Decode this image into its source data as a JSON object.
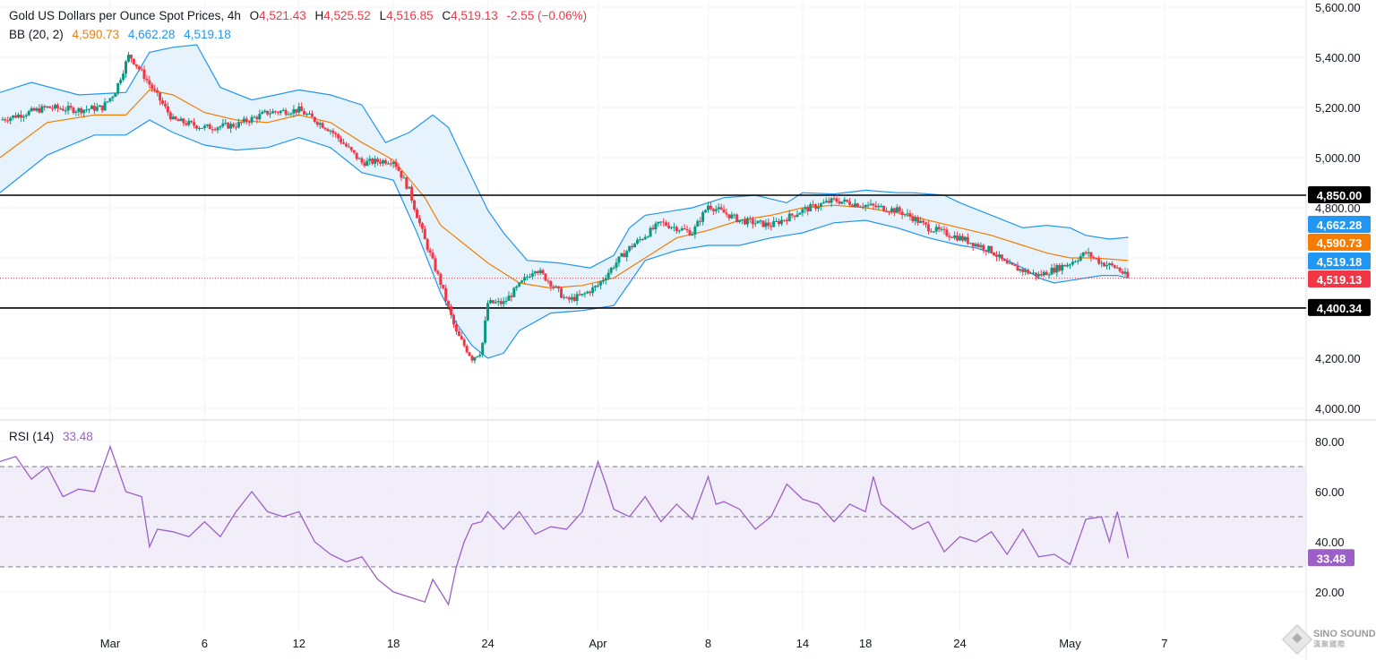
{
  "header": {
    "symbol": "Gold US Dollars per Ounce Spot Prices, 4h",
    "o_label": "O",
    "o_value": "4,521.43",
    "h_label": "H",
    "h_value": "4,525.52",
    "l_label": "L",
    "l_value": "4,516.85",
    "c_label": "C",
    "c_value": "4,519.13",
    "change": "-2.55 (−0.06%)"
  },
  "bb_legend": {
    "label": "BB (20, 2)",
    "basis": "4,590.73",
    "upper": "4,662.28",
    "lower": "4,519.18"
  },
  "rsi_legend": {
    "label": "RSI (14)",
    "value": "33.48"
  },
  "colors": {
    "up": "#089981",
    "down": "#f23645",
    "basis": "#f57c00",
    "band": "#2196f3",
    "band_fill": "#e3f2fd",
    "rsi": "#9c5fc7",
    "rsi_band": "#ede7f6",
    "level_line": "#000000"
  },
  "logo": {
    "text": "SINO SOUND",
    "sub": "漢聚國際"
  },
  "chart_data": [
    {
      "type": "candlestick",
      "title": "Gold US Dollars per Ounce Spot Prices, 4h",
      "ylim": [
        3960,
        5660
      ],
      "y_ticks": [
        "5,600.00",
        "5,400.00",
        "5,200.00",
        "5,000.00",
        "4,800.00",
        "4,200.00",
        "4,000.00"
      ],
      "y_tick_values": [
        5600,
        5400,
        5200,
        5000,
        4800,
        4200,
        4000
      ],
      "x_ticks": [
        "Mar",
        "6",
        "12",
        "18",
        "24",
        "Apr",
        "8",
        "14",
        "18",
        "24",
        "May",
        "7"
      ],
      "x_tick_days": [
        29,
        35,
        41,
        47,
        53,
        60,
        67,
        73,
        77,
        83,
        90,
        96
      ],
      "x_range_days": [
        22,
        105
      ],
      "horizontal_levels": [
        {
          "value": 4850.0,
          "label": "4,850.00"
        },
        {
          "value": 4400.34,
          "label": "4,400.34"
        }
      ],
      "price_labels": [
        {
          "value": 4662.28,
          "label": "4,662.28",
          "series": "bb_upper"
        },
        {
          "value": 4590.73,
          "label": "4,590.73",
          "series": "bb_basis"
        },
        {
          "value": 4519.18,
          "label": "4,519.18",
          "series": "bb_lower"
        },
        {
          "value": 4519.13,
          "label": "4,519.13",
          "series": "close"
        }
      ],
      "last_close": 4519.13,
      "anchors_day": [
        22.0,
        25.0,
        27.0,
        28.5,
        29.3,
        30.2,
        31.0,
        33.0,
        35.0,
        37.0,
        39.0,
        41.0,
        43.0,
        45.0,
        47.0,
        48.0,
        49.0,
        50.0,
        51.0,
        52.0,
        52.6,
        53.0,
        54.0,
        56.0,
        57.0,
        58.0,
        59.0,
        60.0,
        61.0,
        62.0,
        64.0,
        66.0,
        67.0,
        69.0,
        71.0,
        73.0,
        75.0,
        77.0,
        79.0,
        80.0,
        81.0,
        83.0,
        85.0,
        86.0,
        88.0,
        90.0,
        91.0,
        92.0,
        93.0,
        93.7
      ],
      "anchors_price": [
        5150,
        5200,
        5190,
        5200,
        5260,
        5410,
        5340,
        5150,
        5120,
        5130,
        5180,
        5190,
        5110,
        4980,
        4990,
        4870,
        4670,
        4500,
        4300,
        4200,
        4230,
        4420,
        4420,
        4560,
        4500,
        4430,
        4450,
        4490,
        4570,
        4640,
        4740,
        4700,
        4810,
        4750,
        4730,
        4790,
        4830,
        4810,
        4790,
        4760,
        4720,
        4680,
        4630,
        4570,
        4530,
        4580,
        4620,
        4580,
        4560,
        4519
      ],
      "bb_upper_day": [
        22,
        24,
        27,
        30,
        31.5,
        33,
        34.5,
        36,
        38,
        41,
        43,
        45,
        46.5,
        48,
        49.5,
        50.5,
        52,
        53,
        54,
        55.5,
        57.5,
        59.5,
        61,
        62,
        63,
        66,
        68,
        70,
        72,
        73,
        75,
        77,
        79,
        80,
        82,
        83,
        85,
        87,
        88.5,
        90,
        91,
        92.5,
        93.7
      ],
      "bb_upper_price": [
        5260,
        5300,
        5250,
        5260,
        5420,
        5440,
        5450,
        5280,
        5230,
        5270,
        5250,
        5210,
        5060,
        5100,
        5170,
        5120,
        4920,
        4790,
        4700,
        4590,
        4580,
        4560,
        4610,
        4720,
        4770,
        4800,
        4840,
        4850,
        4820,
        4860,
        4855,
        4870,
        4860,
        4860,
        4850,
        4820,
        4770,
        4720,
        4730,
        4720,
        4690,
        4675,
        4682
      ],
      "bb_basis_day": [
        22,
        25,
        28,
        30,
        31.5,
        33,
        35,
        37,
        39,
        41,
        43,
        45,
        47,
        49,
        50,
        51,
        53,
        55,
        57,
        59,
        61,
        63,
        65,
        67,
        69,
        71,
        73,
        75,
        77,
        79,
        81,
        83,
        85,
        87,
        88.5,
        90,
        91.5,
        93.7
      ],
      "bb_basis_price": [
        5000,
        5140,
        5170,
        5170,
        5270,
        5250,
        5180,
        5150,
        5140,
        5170,
        5140,
        5060,
        4990,
        4840,
        4730,
        4680,
        4580,
        4500,
        4480,
        4490,
        4520,
        4600,
        4680,
        4710,
        4750,
        4770,
        4800,
        4810,
        4800,
        4780,
        4750,
        4720,
        4690,
        4650,
        4620,
        4600,
        4600,
        4590
      ],
      "bb_lower_day": [
        22,
        25,
        28,
        30,
        31.5,
        33,
        35,
        37,
        39,
        41,
        43,
        45,
        47,
        48.5,
        50,
        51,
        52,
        53,
        54,
        55,
        57,
        59,
        61,
        62,
        63,
        65,
        67,
        69,
        71,
        73,
        75,
        77,
        79,
        81,
        83,
        84,
        85,
        86,
        87,
        88,
        89,
        90,
        91,
        92,
        93,
        93.7
      ],
      "bb_lower_price": [
        4860,
        5010,
        5090,
        5090,
        5150,
        5100,
        5050,
        5030,
        5040,
        5080,
        5040,
        4940,
        4910,
        4700,
        4460,
        4340,
        4250,
        4200,
        4220,
        4310,
        4380,
        4390,
        4410,
        4500,
        4590,
        4630,
        4650,
        4650,
        4680,
        4700,
        4740,
        4750,
        4720,
        4680,
        4650,
        4640,
        4620,
        4590,
        4560,
        4520,
        4500,
        4510,
        4520,
        4530,
        4530,
        4520
      ]
    },
    {
      "type": "line",
      "title": "RSI (14)",
      "ylim": [
        13,
        85
      ],
      "y_ticks": [
        "80.00",
        "60.00",
        "40.00",
        "20.00"
      ],
      "y_tick_values": [
        80,
        60,
        40,
        20
      ],
      "band": [
        30,
        70
      ],
      "midline": 50,
      "value_label": "33.48",
      "last_value": 33.48,
      "day": [
        22,
        23,
        24,
        25,
        26,
        27,
        28,
        29,
        30,
        31,
        31.5,
        32,
        33,
        34,
        35,
        36,
        37,
        38,
        39,
        40,
        41,
        42,
        43,
        44,
        45,
        46,
        47,
        48,
        49,
        49.5,
        50,
        50.5,
        51,
        51.5,
        52,
        52.6,
        53,
        54,
        55,
        56,
        57,
        58,
        59,
        60,
        60.5,
        61,
        62,
        63,
        64,
        65,
        66,
        67,
        67.5,
        68,
        69,
        70,
        71,
        72,
        73,
        74,
        75,
        76,
        77,
        77.5,
        78,
        79,
        80,
        81,
        82,
        83,
        84,
        85,
        86,
        87,
        88,
        89,
        90,
        91,
        92,
        92.5,
        93,
        93.7
      ],
      "value": [
        72,
        74,
        65,
        70,
        58,
        61,
        60,
        78,
        60,
        58,
        38,
        45,
        44,
        42,
        48,
        42,
        52,
        60,
        52,
        50,
        52,
        40,
        35,
        32,
        34,
        25,
        20,
        18,
        16,
        25,
        20,
        15,
        30,
        40,
        47,
        48,
        52,
        45,
        52,
        43,
        46,
        45,
        52,
        72,
        63,
        53,
        50,
        58,
        48,
        55,
        49,
        66,
        55,
        56,
        53,
        45,
        50,
        63,
        57,
        55,
        48,
        55,
        52,
        66,
        55,
        50,
        45,
        48,
        36,
        42,
        40,
        44,
        35,
        45,
        34,
        35,
        31,
        49,
        50,
        40,
        52,
        33.48
      ]
    }
  ]
}
